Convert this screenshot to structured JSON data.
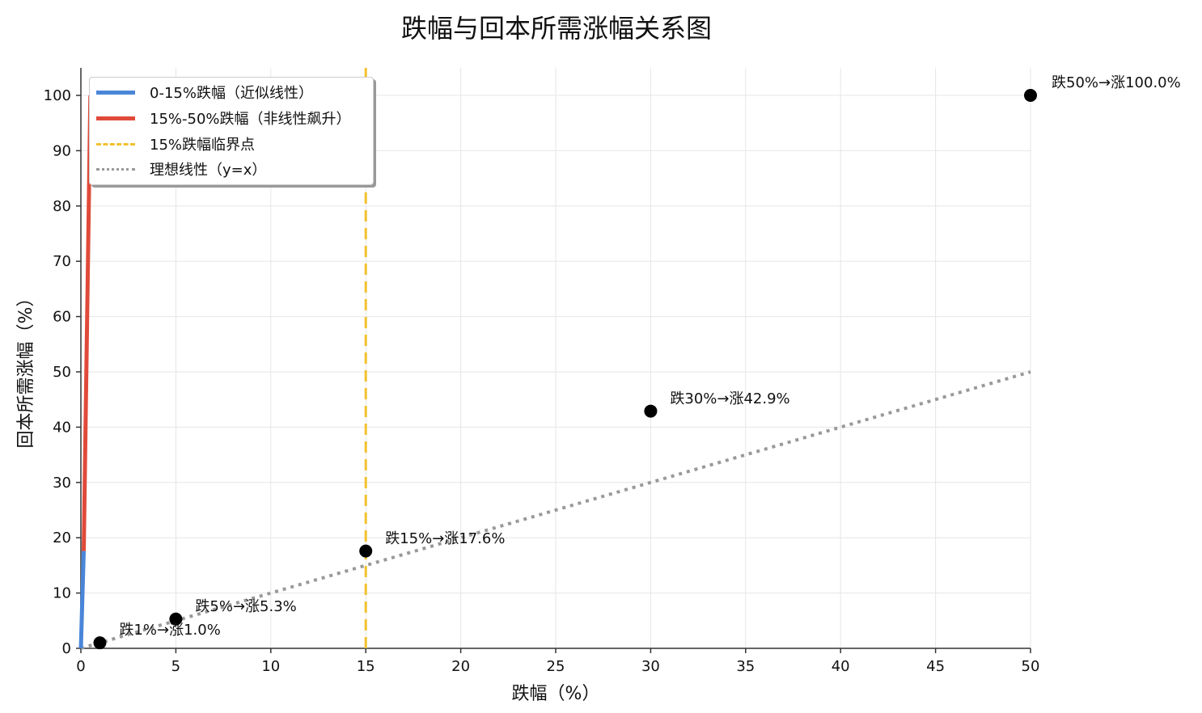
{
  "chart_data": {
    "type": "line",
    "title": "跌幅与回本所需涨幅关系图",
    "xlabel": "跌幅（%）",
    "ylabel": "回本所需涨幅（%）",
    "xlim": [
      0,
      50
    ],
    "ylim": [
      0,
      105
    ],
    "xticks": [
      0,
      5,
      10,
      15,
      20,
      25,
      30,
      35,
      40,
      45,
      50
    ],
    "yticks": [
      0,
      10,
      20,
      30,
      40,
      50,
      60,
      70,
      80,
      90,
      100
    ],
    "grid": true,
    "legend_position": "upper left",
    "series": [
      {
        "name": "0-15%跌幅（近似线性）",
        "type": "line",
        "color": "#4a86d8",
        "x": [
          0,
          0.15
        ],
        "y": [
          0,
          17.6
        ]
      },
      {
        "name": "15%-50%跌幅（非线性飙升）",
        "type": "line",
        "color": "#e04a3a",
        "x": [
          0.15,
          0.5
        ],
        "y": [
          17.6,
          100
        ]
      },
      {
        "name": "15%跌幅临界点",
        "type": "vline",
        "color": "#f2c12e",
        "x": 15
      },
      {
        "name": "理想线性（y=x）",
        "type": "dotted",
        "color": "#999999",
        "x": [
          0,
          50
        ],
        "y": [
          0,
          50
        ]
      }
    ],
    "points": [
      {
        "x": 1,
        "y": 1.0,
        "label": "跌1%→涨1.0%"
      },
      {
        "x": 5,
        "y": 5.3,
        "label": "跌5%→涨5.3%"
      },
      {
        "x": 15,
        "y": 17.6,
        "label": "跌15%→涨17.6%"
      },
      {
        "x": 30,
        "y": 42.9,
        "label": "跌30%→涨42.9%"
      },
      {
        "x": 50,
        "y": 100.0,
        "label": "跌50%→涨100.0%"
      }
    ]
  }
}
